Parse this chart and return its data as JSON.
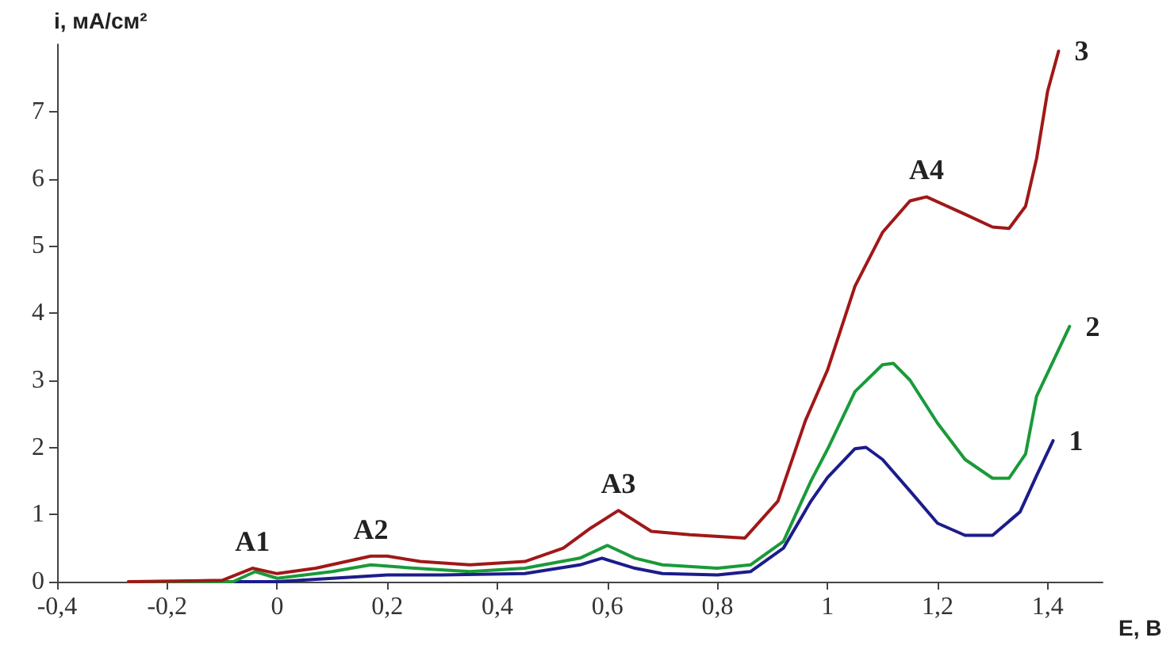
{
  "chart_data": {
    "type": "line",
    "xlabel": "E, B",
    "ylabel": "i, мА/см²",
    "xlim": [
      -0.4,
      1.5
    ],
    "ylim": [
      0,
      8
    ],
    "xticks": [
      {
        "value": -0.4,
        "label": "-0,4"
      },
      {
        "value": -0.2,
        "label": "-0,2"
      },
      0,
      {
        "value": 0.2,
        "label": "0,2"
      },
      {
        "value": 0.4,
        "label": "0,4"
      },
      {
        "value": 0.6,
        "label": "0,6"
      },
      {
        "value": 0.8,
        "label": "0,8"
      },
      1,
      {
        "value": 1.2,
        "label": "1,2"
      },
      {
        "value": 1.4,
        "label": "1,4"
      }
    ],
    "yticks": [
      0,
      1,
      2,
      3,
      4,
      5,
      6,
      7
    ],
    "grid": false,
    "legend": false,
    "marker": "none",
    "line_style": "solid",
    "series": [
      {
        "name": "1",
        "color": "#1c1c8c",
        "x": [
          -0.27,
          -0.1,
          0,
          0.1,
          0.2,
          0.3,
          0.45,
          0.55,
          0.59,
          0.65,
          0.7,
          0.8,
          0.86,
          0.92,
          0.97,
          1.0,
          1.05,
          1.07,
          1.1,
          1.15,
          1.2,
          1.25,
          1.3,
          1.35,
          1.38,
          1.41
        ],
        "values": [
          0,
          0,
          0,
          0.05,
          0.1,
          0.1,
          0.12,
          0.25,
          0.35,
          0.2,
          0.12,
          0.1,
          0.15,
          0.5,
          1.2,
          1.55,
          1.98,
          2.0,
          1.82,
          1.35,
          0.87,
          0.69,
          0.69,
          1.04,
          1.58,
          2.1
        ]
      },
      {
        "name": "2",
        "color": "#1a9a3a",
        "x": [
          -0.27,
          -0.08,
          -0.04,
          0,
          0.1,
          0.17,
          0.25,
          0.35,
          0.45,
          0.55,
          0.6,
          0.65,
          0.7,
          0.8,
          0.86,
          0.92,
          0.97,
          1.0,
          1.05,
          1.1,
          1.12,
          1.15,
          1.2,
          1.25,
          1.3,
          1.33,
          1.36,
          1.38,
          1.44
        ],
        "values": [
          0,
          0,
          0.15,
          0.05,
          0.15,
          0.25,
          0.2,
          0.15,
          0.2,
          0.35,
          0.54,
          0.35,
          0.25,
          0.2,
          0.25,
          0.6,
          1.5,
          1.97,
          2.83,
          3.23,
          3.25,
          3.0,
          2.36,
          1.82,
          1.54,
          1.54,
          1.9,
          2.76,
          3.8
        ]
      },
      {
        "name": "3",
        "color": "#a01818",
        "x": [
          -0.27,
          -0.1,
          -0.045,
          0,
          0.07,
          0.17,
          0.2,
          0.26,
          0.35,
          0.45,
          0.52,
          0.57,
          0.62,
          0.68,
          0.75,
          0.85,
          0.91,
          0.96,
          1.0,
          1.05,
          1.1,
          1.15,
          1.18,
          1.25,
          1.3,
          1.33,
          1.36,
          1.38,
          1.4,
          1.42
        ],
        "values": [
          0,
          0.02,
          0.2,
          0.12,
          0.2,
          0.38,
          0.38,
          0.3,
          0.25,
          0.3,
          0.5,
          0.8,
          1.06,
          0.75,
          0.7,
          0.65,
          1.2,
          2.4,
          3.15,
          4.4,
          5.2,
          5.67,
          5.73,
          5.47,
          5.28,
          5.26,
          5.59,
          6.3,
          7.3,
          7.9
        ]
      }
    ],
    "annotations": [
      {
        "text": "A1",
        "x": -0.045,
        "y": 0.2
      },
      {
        "text": "A2",
        "x": 0.17,
        "y": 0.38
      },
      {
        "text": "A3",
        "x": 0.62,
        "y": 1.06
      },
      {
        "text": "A4",
        "x": 1.18,
        "y": 5.73
      }
    ]
  }
}
